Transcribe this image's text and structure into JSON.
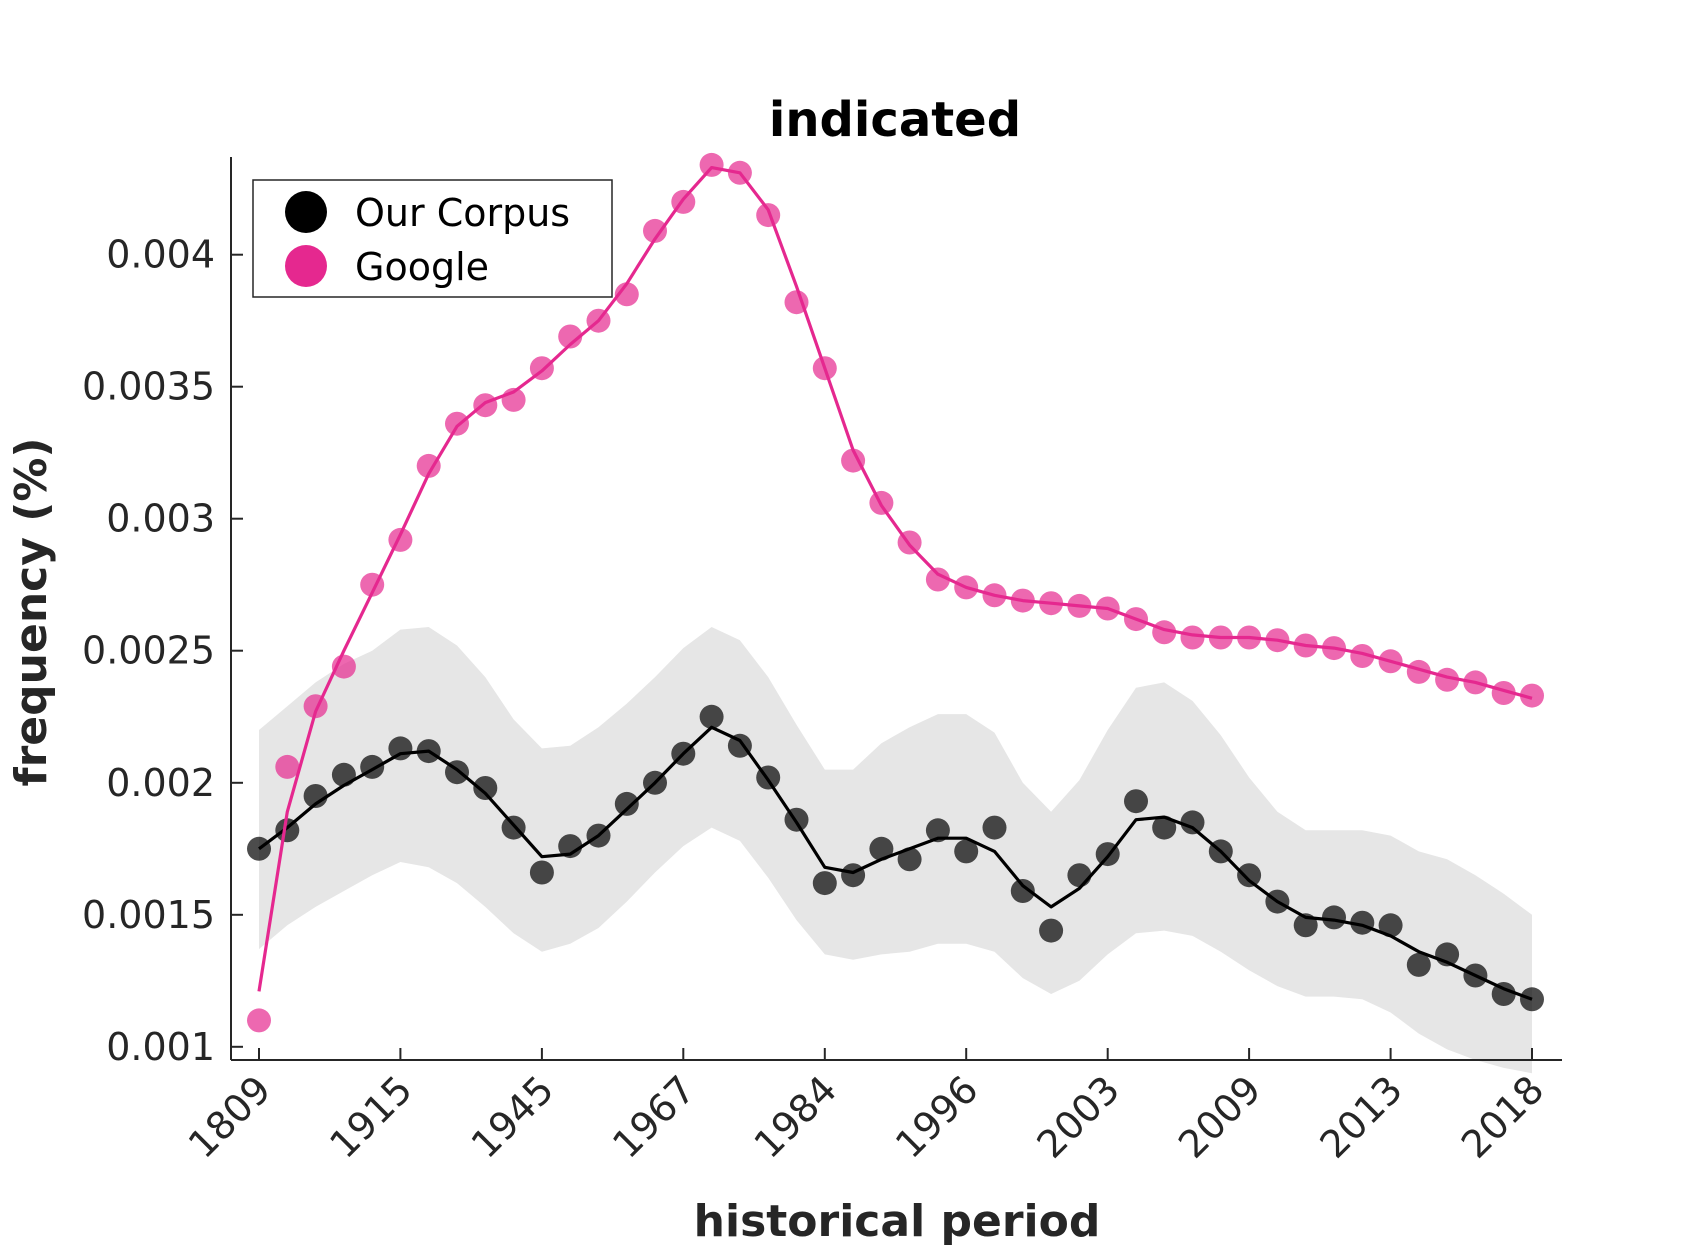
{
  "chart_data": {
    "type": "line",
    "title": "indicated",
    "xlabel": "historical period",
    "ylabel": "frequency (%)",
    "x_tick_labels": [
      "1809",
      "1915",
      "1945",
      "1967",
      "1984",
      "1996",
      "2003",
      "2009",
      "2013",
      "2018"
    ],
    "y_ticks": [
      0.001,
      0.0015,
      0.002,
      0.0025,
      0.003,
      0.0035,
      0.004
    ],
    "y_tick_labels": [
      "0.001",
      "0.0015",
      "0.002",
      "0.0025",
      "0.003",
      "0.0035",
      "0.004"
    ],
    "ylim": [
      0.00095,
      0.00437
    ],
    "grid": false,
    "legend_position": "top-left",
    "colors": {
      "our_corpus": "#000000",
      "google": "#e5288f",
      "band": "#e6e6e6"
    },
    "series": [
      {
        "name": "Our Corpus",
        "points": [
          0.00175,
          0.00182,
          0.00195,
          0.00203,
          0.00206,
          0.00213,
          0.00212,
          0.00204,
          0.00198,
          0.00183,
          0.00166,
          0.00176,
          0.0018,
          0.00192,
          0.002,
          0.00211,
          0.00225,
          0.00214,
          0.00202,
          0.00186,
          0.00162,
          0.00165,
          0.00175,
          0.00171,
          0.00182,
          0.00174,
          0.00183,
          0.00159,
          0.00144,
          0.00165,
          0.00173,
          0.00193,
          0.00183,
          0.00185,
          0.00174,
          0.00165,
          0.00155,
          0.00146,
          0.00149,
          0.00147,
          0.00146,
          0.00131,
          0.00135,
          0.00127,
          0.0012,
          0.00118
        ],
        "smoothed": [
          0.00175,
          0.00183,
          0.00192,
          0.00199,
          0.00205,
          0.00211,
          0.00212,
          0.00205,
          0.00196,
          0.00184,
          0.00172,
          0.00173,
          0.0018,
          0.0019,
          0.002,
          0.00211,
          0.00221,
          0.00216,
          0.00201,
          0.00185,
          0.00168,
          0.00166,
          0.00171,
          0.00175,
          0.00179,
          0.00179,
          0.00174,
          0.00161,
          0.00153,
          0.0016,
          0.00172,
          0.00186,
          0.00187,
          0.00183,
          0.00174,
          0.00163,
          0.00155,
          0.00149,
          0.00148,
          0.00146,
          0.00142,
          0.00136,
          0.00132,
          0.00127,
          0.00122,
          0.00118
        ],
        "band_upper": [
          0.0022,
          0.00229,
          0.00238,
          0.00245,
          0.0025,
          0.00258,
          0.00259,
          0.00252,
          0.0024,
          0.00224,
          0.00213,
          0.00214,
          0.00221,
          0.0023,
          0.0024,
          0.00251,
          0.00259,
          0.00254,
          0.0024,
          0.00222,
          0.00205,
          0.00205,
          0.00215,
          0.00221,
          0.00226,
          0.00226,
          0.00219,
          0.002,
          0.00189,
          0.00201,
          0.0022,
          0.00236,
          0.00238,
          0.00231,
          0.00218,
          0.00202,
          0.00189,
          0.00182,
          0.00182,
          0.00182,
          0.0018,
          0.00174,
          0.00171,
          0.00165,
          0.00158,
          0.0015
        ],
        "band_lower": [
          0.00137,
          0.00146,
          0.00153,
          0.00159,
          0.00165,
          0.0017,
          0.00168,
          0.00162,
          0.00153,
          0.00143,
          0.00136,
          0.00139,
          0.00145,
          0.00155,
          0.00166,
          0.00176,
          0.00183,
          0.00178,
          0.00164,
          0.00148,
          0.00135,
          0.00133,
          0.00135,
          0.00136,
          0.00139,
          0.00139,
          0.00136,
          0.00126,
          0.0012,
          0.00125,
          0.00135,
          0.00143,
          0.00144,
          0.00142,
          0.00136,
          0.00129,
          0.00123,
          0.00119,
          0.00119,
          0.00118,
          0.00113,
          0.00105,
          0.00099,
          0.00095,
          0.00092,
          0.0009
        ]
      },
      {
        "name": "Google",
        "points": [
          0.0011,
          0.00206,
          0.00229,
          0.00244,
          0.00275,
          0.00292,
          0.0032,
          0.00336,
          0.00343,
          0.00345,
          0.00357,
          0.00369,
          0.00375,
          0.00385,
          0.00409,
          0.0042,
          0.00434,
          0.00431,
          0.00415,
          0.00382,
          0.00357,
          0.00322,
          0.00306,
          0.00291,
          0.00277,
          0.00274,
          0.00271,
          0.00269,
          0.00268,
          0.00267,
          0.00266,
          0.00262,
          0.00257,
          0.00255,
          0.00255,
          0.00255,
          0.00254,
          0.00252,
          0.00251,
          0.00248,
          0.00246,
          0.00242,
          0.00239,
          0.00238,
          0.00234,
          0.00233
        ],
        "smoothed": [
          0.00121,
          0.00189,
          0.00227,
          0.0025,
          0.00272,
          0.00294,
          0.00317,
          0.00335,
          0.00344,
          0.00348,
          0.00356,
          0.00366,
          0.00375,
          0.00389,
          0.00406,
          0.00421,
          0.00433,
          0.00431,
          0.00417,
          0.00388,
          0.00357,
          0.00326,
          0.00305,
          0.0029,
          0.00279,
          0.00274,
          0.00271,
          0.00269,
          0.00268,
          0.00267,
          0.00266,
          0.00262,
          0.00258,
          0.00256,
          0.00255,
          0.00255,
          0.00254,
          0.00252,
          0.00251,
          0.00249,
          0.00246,
          0.00243,
          0.0024,
          0.00238,
          0.00235,
          0.00232
        ]
      }
    ]
  }
}
